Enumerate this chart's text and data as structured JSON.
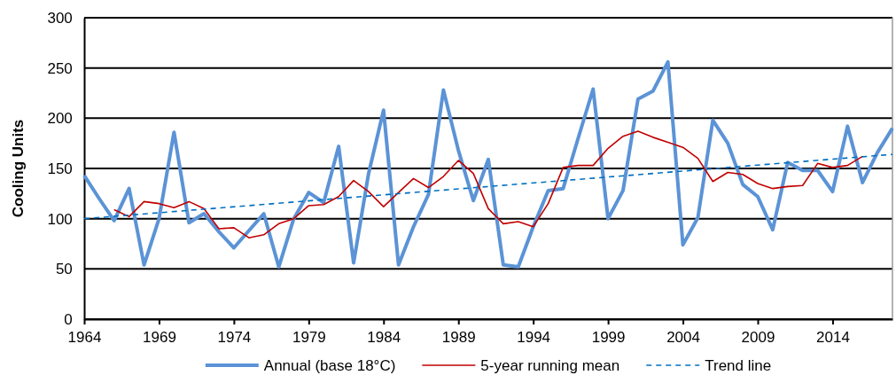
{
  "chart_data": {
    "type": "line",
    "ylabel": "Cooling Units",
    "xlim": [
      1964,
      2018
    ],
    "xticks": [
      1964,
      1969,
      1974,
      1979,
      1984,
      1989,
      1994,
      1999,
      2004,
      2009,
      2014
    ],
    "ylim": [
      0,
      300
    ],
    "yticks": [
      0,
      50,
      100,
      150,
      200,
      250,
      300
    ],
    "grid": "y",
    "legend": "bottom",
    "marker": "none",
    "series": [
      {
        "name": "Annual (base 18°C)",
        "color": "#5b93d6",
        "x": [
          1964,
          1965,
          1966,
          1967,
          1968,
          1969,
          1970,
          1971,
          1972,
          1973,
          1974,
          1975,
          1976,
          1977,
          1978,
          1979,
          1980,
          1981,
          1982,
          1983,
          1984,
          1985,
          1986,
          1987,
          1988,
          1989,
          1990,
          1991,
          1992,
          1993,
          1994,
          1995,
          1996,
          1997,
          1998,
          1999,
          2000,
          2001,
          2002,
          2003,
          2004,
          2005,
          2006,
          2007,
          2008,
          2009,
          2010,
          2011,
          2012,
          2013,
          2014,
          2015,
          2016,
          2017,
          2018
        ],
        "values": [
          143,
          120,
          98,
          130,
          54,
          100,
          186,
          96,
          105,
          87,
          71,
          88,
          105,
          52,
          100,
          126,
          116,
          172,
          56,
          145,
          208,
          54,
          92,
          124,
          228,
          168,
          118,
          159,
          54,
          52,
          92,
          128,
          130,
          180,
          229,
          100,
          128,
          219,
          227,
          256,
          74,
          101,
          198,
          175,
          134,
          122,
          89,
          156,
          148,
          148,
          127,
          192,
          136,
          166,
          190
        ]
      },
      {
        "name": "5-year running mean",
        "color": "#c00000",
        "x": [
          1966,
          1967,
          1968,
          1969,
          1970,
          1971,
          1972,
          1973,
          1974,
          1975,
          1976,
          1977,
          1978,
          1979,
          1980,
          1981,
          1982,
          1983,
          1984,
          1985,
          1986,
          1987,
          1988,
          1989,
          1990,
          1991,
          1992,
          1993,
          1994,
          1995,
          1996,
          1997,
          1998,
          1999,
          2000,
          2001,
          2002,
          2003,
          2004,
          2005,
          2006,
          2007,
          2008,
          2009,
          2010,
          2011,
          2012,
          2013,
          2014,
          2015,
          2016
        ],
        "values": [
          109,
          102,
          117,
          115,
          111,
          117,
          110,
          90,
          91,
          81,
          84,
          95,
          100,
          113,
          114,
          122,
          138,
          127,
          112,
          126,
          140,
          131,
          142,
          158,
          145,
          110,
          95,
          97,
          92,
          115,
          151,
          153,
          153,
          170,
          182,
          187,
          181,
          176,
          171,
          160,
          137,
          146,
          144,
          135,
          130,
          132,
          133,
          155,
          151,
          153,
          162
        ]
      },
      {
        "name": "Trend line",
        "color": "#0070c0",
        "line_style": "dashed",
        "x": [
          1964,
          2018
        ],
        "values": [
          100,
          164
        ]
      }
    ]
  }
}
